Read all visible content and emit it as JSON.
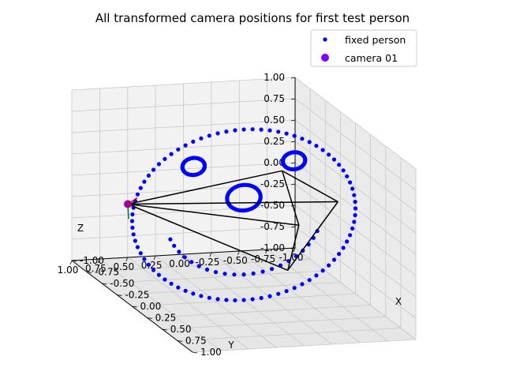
{
  "chart_data": {
    "type": "scatter",
    "title": "All transformed camera positions for first test person",
    "xlabel": "X",
    "ylabel": "Y",
    "zlabel": "Z",
    "xlim": [
      -1.0,
      1.0
    ],
    "ylim": [
      -1.0,
      1.0
    ],
    "zlim": [
      -1.0,
      1.0
    ],
    "grid": true,
    "legend_position": "upper-right",
    "x_ticks": [
      "-1.00",
      "-0.75",
      "-0.50",
      "-0.25",
      "0.00",
      "0.25",
      "0.50",
      "0.75",
      "1.00"
    ],
    "y_ticks": [
      "-1.00",
      "-0.75",
      "-0.50",
      "-0.25",
      "0.00",
      "0.25",
      "0.50",
      "0.75",
      "1.00"
    ],
    "z_ticks": [
      "-1.00",
      "-0.75",
      "-0.50",
      "-0.25",
      "0.00",
      "0.25",
      "0.50",
      "0.75",
      "1.00"
    ],
    "series": [
      {
        "name": "fixed person",
        "color": "#0000ff",
        "marker": "dot",
        "parts": {
          "outer_circle": {
            "center": [
              0,
              0,
              0
            ],
            "radius": 1.0,
            "plane": "YZ"
          },
          "left_eye": {
            "center": [
              0,
              -0.45,
              0.6
            ],
            "radius": 0.1
          },
          "right_eye": {
            "center": [
              0,
              0.45,
              0.6
            ],
            "radius": 0.1
          },
          "nose": {
            "center": [
              0,
              0,
              0.2
            ],
            "radius": 0.15
          },
          "mouth": {
            "center": [
              0,
              0,
              0
            ],
            "radius": 0.7,
            "arc_degrees": [
              200,
              340
            ]
          }
        }
      },
      {
        "name": "camera 01",
        "color": "#8000ff",
        "marker": "circle",
        "position": [
          -0.35,
          0.85,
          0.0
        ]
      }
    ]
  }
}
